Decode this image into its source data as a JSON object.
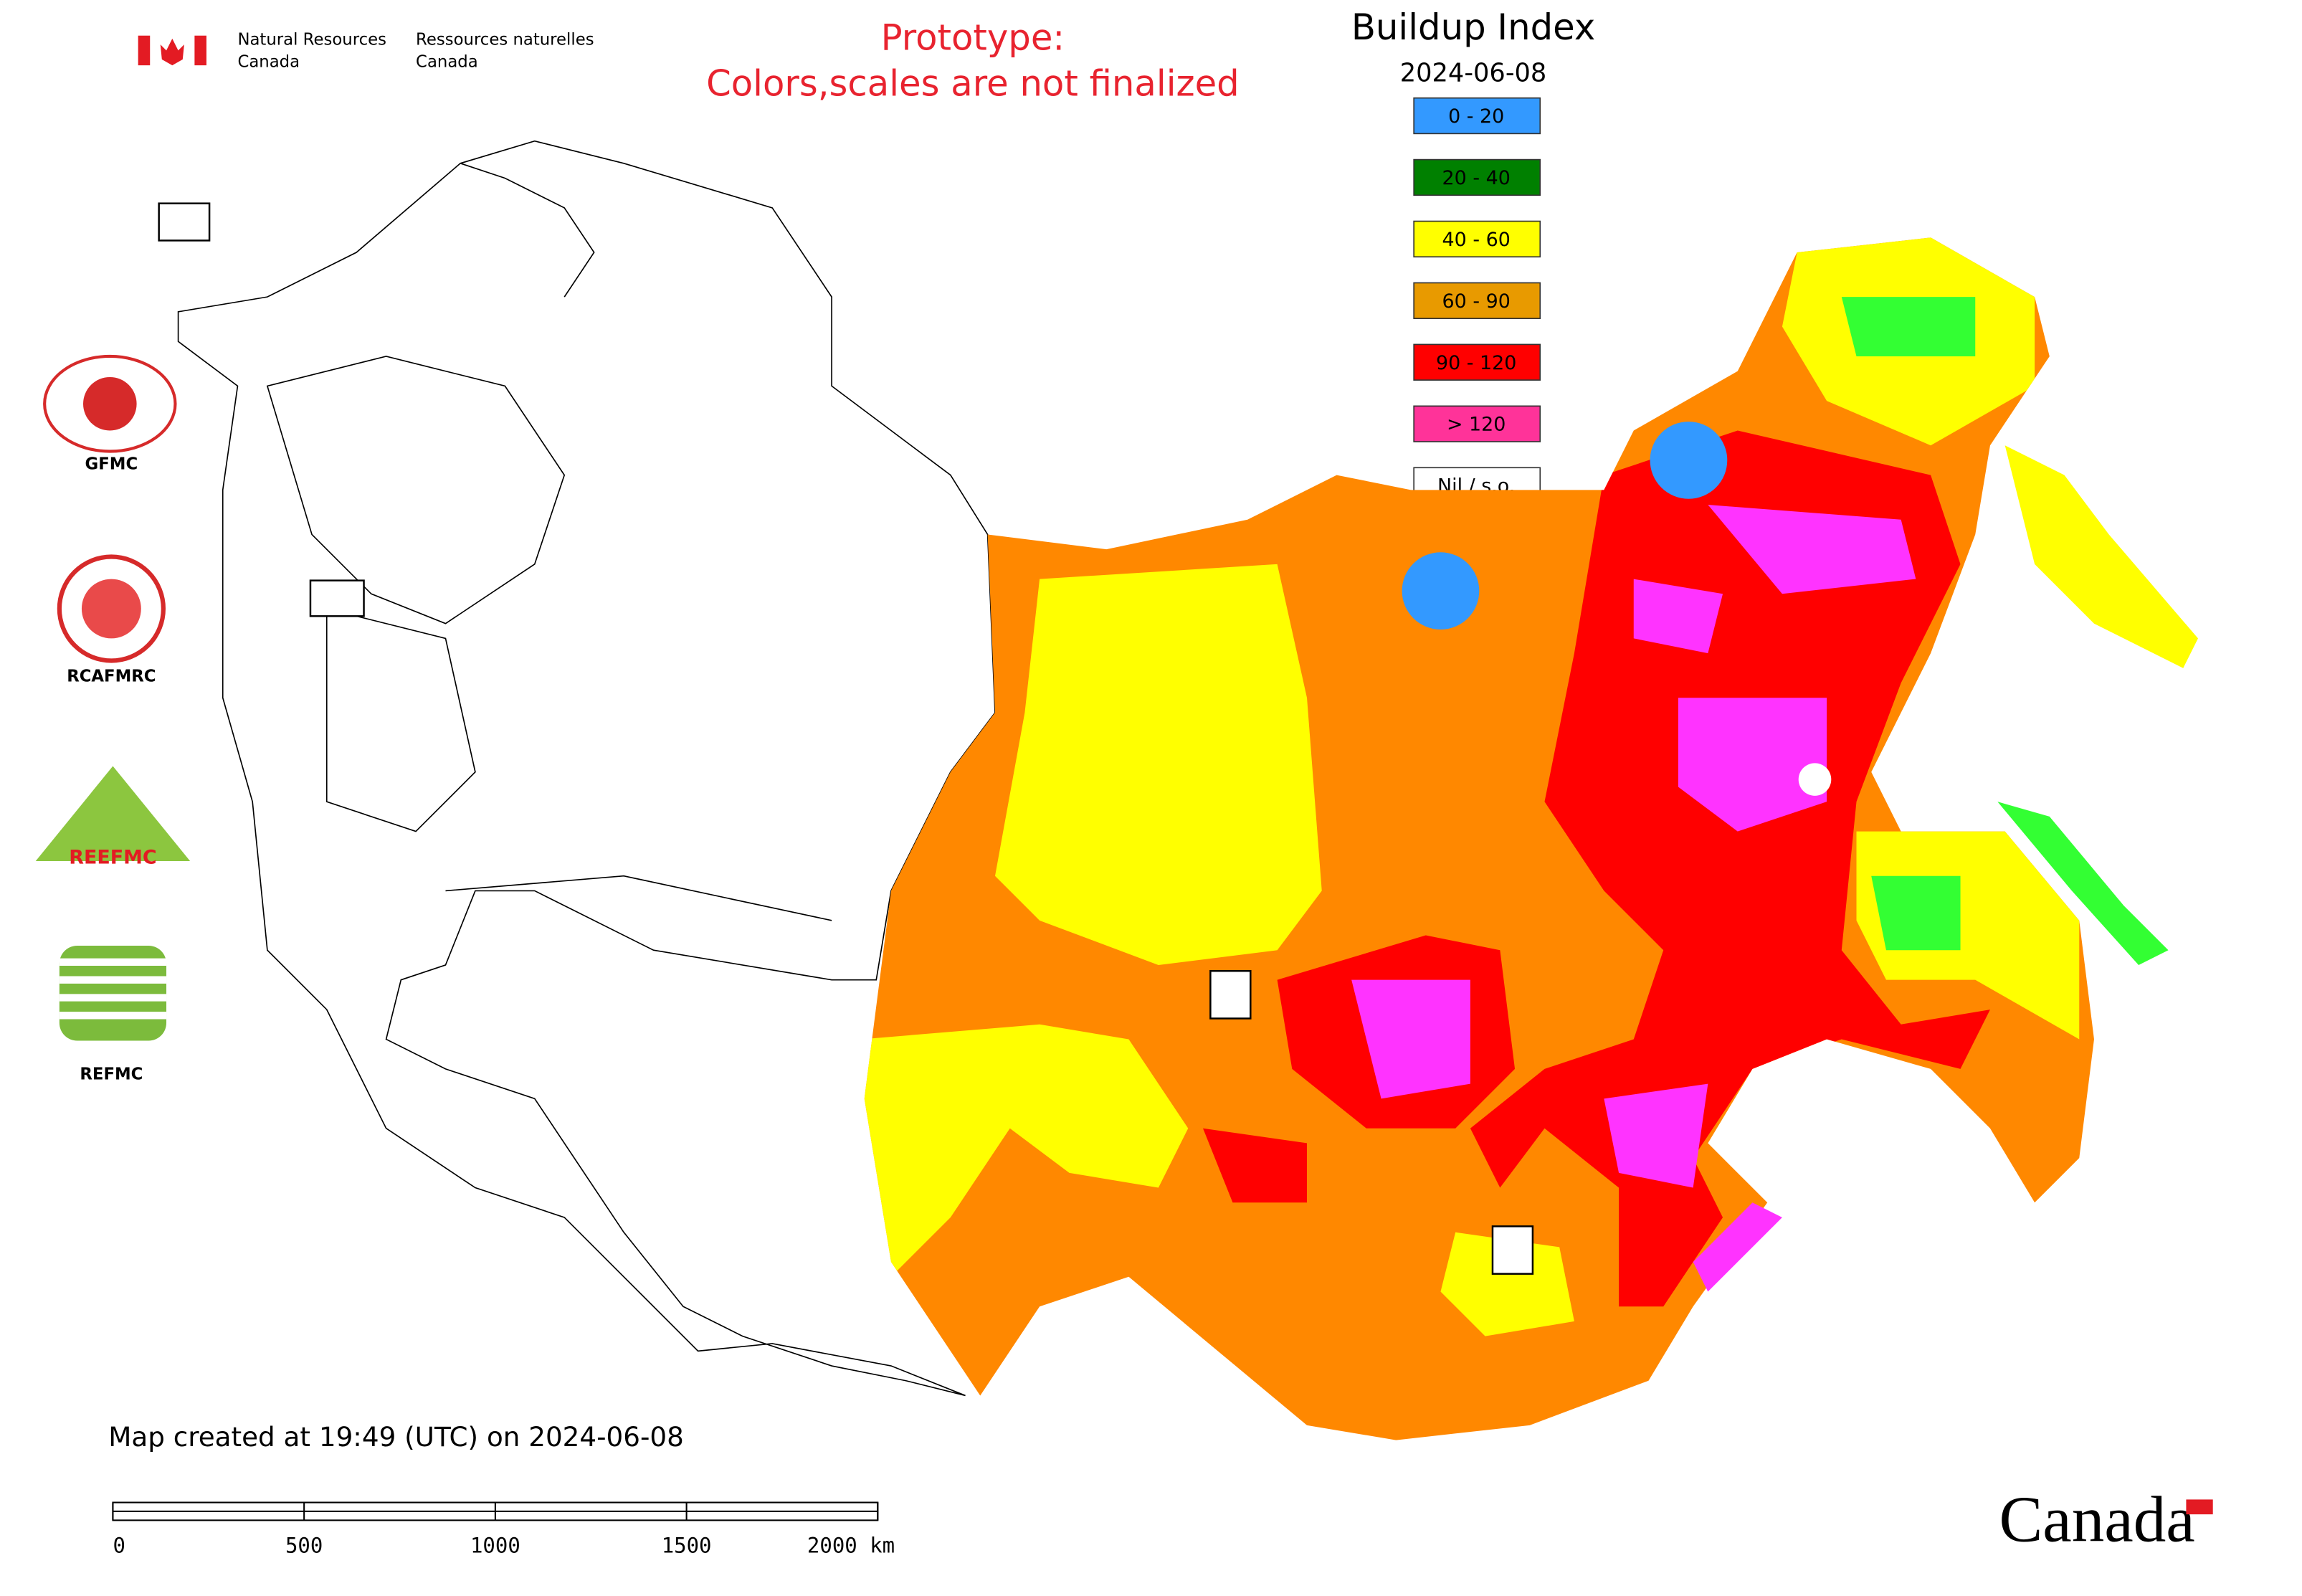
{
  "header": {
    "agency_en": [
      "Natural Resources",
      "Canada"
    ],
    "agency_fr": [
      "Ressources naturelles",
      "Canada"
    ],
    "notice": [
      "Prototype:",
      "Colors,scales are not finalized"
    ]
  },
  "map": {
    "title": "Buildup Index",
    "date": "2024-06-08",
    "legend": [
      {
        "label": "0 - 20",
        "color": "#3399ff"
      },
      {
        "label": "20 - 40",
        "color": "#008000"
      },
      {
        "label": "40 - 60",
        "color": "#ffff00"
      },
      {
        "label": "60 - 90",
        "color": "#e89a00"
      },
      {
        "label": "90 - 120",
        "color": "#ff0000"
      },
      {
        "label": "> 120",
        "color": "#ff3399"
      },
      {
        "label": "Nil / s.o.",
        "color": "#ffffff"
      }
    ]
  },
  "logos": [
    "GFMC",
    "RCAFMRC",
    "REEFMC",
    "REFMC"
  ],
  "footer": {
    "created": "Map created at 19:49 (UTC) on 2024-06-08",
    "scale_labels": [
      "0",
      "500",
      "1000",
      "1500",
      "2000 km"
    ],
    "wordmark": "Canada"
  }
}
